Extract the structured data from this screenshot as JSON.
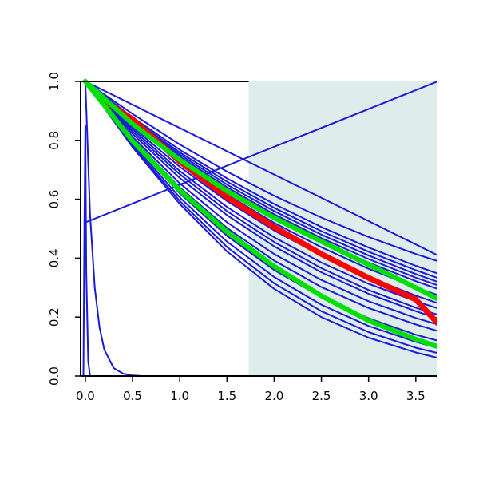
{
  "chart_data": {
    "type": "line",
    "title": "",
    "xlabel": "",
    "ylabel": "",
    "xlim": [
      -0.05,
      3.73
    ],
    "ylim": [
      0.0,
      1.0
    ],
    "x_ticks": [
      0.0,
      0.5,
      1.0,
      1.5,
      2.0,
      2.5,
      3.0,
      3.5
    ],
    "x_tick_labels": [
      "0.0",
      "0.5",
      "1.0",
      "1.5",
      "2.0",
      "2.5",
      "3.0",
      "3.5"
    ],
    "y_ticks": [
      0.0,
      0.2,
      0.4,
      0.6,
      0.8,
      1.0
    ],
    "y_tick_labels": [
      "0.0",
      "0.2",
      "0.4",
      "0.6",
      "0.8",
      "1.0"
    ],
    "grid": false,
    "legend": "none",
    "shaded_region": {
      "x_start": 1.73,
      "x_end": 3.73,
      "color": "#deeceb"
    },
    "colors": {
      "blue": "#1a1adc",
      "red": "#ff0000",
      "green": "#00e000",
      "axis": "#000000"
    },
    "series": [
      {
        "color": "blue",
        "width": 2,
        "x": [
          0,
          1.0,
          2.0,
          3.0,
          3.73
        ],
        "y": [
          1.0,
          0.842,
          0.684,
          0.526,
          0.41
        ]
      },
      {
        "color": "blue",
        "width": 2,
        "x": [
          -0.01,
          3.73
        ],
        "y": [
          0.52,
          1.0
        ]
      },
      {
        "color": "blue",
        "width": 2,
        "x": [
          0,
          0.05,
          0.1,
          0.15,
          0.2,
          0.3,
          0.4,
          0.5,
          0.6,
          0.8,
          1.0,
          3.73
        ],
        "y": [
          1.0,
          0.55,
          0.3,
          0.165,
          0.09,
          0.027,
          0.008,
          0.002,
          0.0,
          0.0,
          0.0,
          0.0
        ]
      },
      {
        "color": "blue",
        "width": 2,
        "x": [
          -0.02,
          -0.01,
          0.0,
          0.01,
          0.03,
          0.05,
          3.73
        ],
        "y": [
          0.0,
          0.5,
          0.85,
          0.35,
          0.05,
          0.0,
          0.0
        ]
      },
      {
        "color": "blue",
        "width": 2,
        "x": [
          0,
          0.5,
          1.0,
          1.5,
          2.0,
          2.5,
          3.0,
          3.5,
          3.73
        ],
        "y": [
          1.0,
          0.89,
          0.786,
          0.694,
          0.612,
          0.538,
          0.472,
          0.414,
          0.39
        ]
      },
      {
        "color": "blue",
        "width": 2,
        "x": [
          0,
          0.5,
          1.0,
          1.5,
          2.0,
          2.5,
          3.0,
          3.5,
          3.73
        ],
        "y": [
          1.0,
          0.878,
          0.768,
          0.671,
          0.584,
          0.506,
          0.436,
          0.374,
          0.348
        ]
      },
      {
        "color": "blue",
        "width": 2,
        "x": [
          0,
          0.5,
          1.0,
          1.5,
          2.0,
          2.5,
          3.0,
          3.5,
          3.73
        ],
        "y": [
          1.0,
          0.873,
          0.759,
          0.66,
          0.571,
          0.492,
          0.422,
          0.359,
          0.333
        ]
      },
      {
        "color": "blue",
        "width": 2,
        "x": [
          0,
          0.5,
          1.0,
          1.5,
          2.0,
          2.5,
          3.0,
          3.5,
          3.73
        ],
        "y": [
          1.0,
          0.868,
          0.752,
          0.65,
          0.56,
          0.48,
          0.409,
          0.346,
          0.32
        ]
      },
      {
        "color": "blue",
        "width": 2,
        "x": [
          0,
          0.5,
          1.0,
          1.5,
          2.0,
          2.5,
          3.0,
          3.5,
          3.73
        ],
        "y": [
          1.0,
          0.864,
          0.745,
          0.641,
          0.549,
          0.468,
          0.397,
          0.334,
          0.308
        ]
      },
      {
        "color": "blue",
        "width": 2,
        "x": [
          0,
          0.5,
          1.0,
          1.5,
          2.0,
          2.5,
          3.0,
          3.5,
          3.73
        ],
        "y": [
          1.0,
          0.86,
          0.738,
          0.632,
          0.539,
          0.457,
          0.385,
          0.322,
          0.296
        ]
      },
      {
        "color": "blue",
        "width": 2,
        "x": [
          0,
          0.5,
          1.0,
          1.5,
          2.0,
          2.5,
          3.0,
          3.5,
          3.73
        ],
        "y": [
          1.0,
          0.853,
          0.726,
          0.616,
          0.52,
          0.437,
          0.364,
          0.301,
          0.275
        ]
      },
      {
        "color": "blue",
        "width": 2,
        "x": [
          0,
          0.5,
          1.0,
          1.5,
          2.0,
          2.5,
          3.0,
          3.5,
          3.73
        ],
        "y": [
          1.0,
          0.845,
          0.71,
          0.594,
          0.494,
          0.409,
          0.336,
          0.273,
          0.248
        ]
      },
      {
        "color": "blue",
        "width": 2,
        "x": [
          0,
          0.5,
          1.0,
          1.5,
          2.0,
          2.5,
          3.0,
          3.5,
          3.73
        ],
        "y": [
          1.0,
          0.838,
          0.696,
          0.574,
          0.471,
          0.385,
          0.313,
          0.254,
          0.23
        ]
      },
      {
        "color": "blue",
        "width": 2,
        "x": [
          0,
          0.5,
          1.0,
          1.5,
          2.0,
          2.5,
          3.0,
          3.5,
          3.73
        ],
        "y": [
          1.0,
          0.83,
          0.685,
          0.56,
          0.455,
          0.366,
          0.292,
          0.232,
          0.208
        ]
      },
      {
        "color": "blue",
        "width": 2,
        "x": [
          0,
          0.5,
          1.0,
          1.5,
          2.0,
          2.5,
          3.0,
          3.5,
          3.73
        ],
        "y": [
          1.0,
          0.822,
          0.672,
          0.546,
          0.44,
          0.352,
          0.279,
          0.22,
          0.196
        ]
      },
      {
        "color": "blue",
        "width": 2,
        "x": [
          0,
          0.5,
          1.0,
          1.5,
          2.0,
          2.5,
          3.0,
          3.5,
          3.73
        ],
        "y": [
          1.0,
          0.812,
          0.654,
          0.522,
          0.414,
          0.326,
          0.254,
          0.197,
          0.175
        ]
      },
      {
        "color": "blue",
        "width": 2,
        "x": [
          0,
          0.5,
          1.0,
          1.5,
          2.0,
          2.5,
          3.0,
          3.5,
          3.73
        ],
        "y": [
          1.0,
          0.805,
          0.64,
          0.503,
          0.392,
          0.302,
          0.231,
          0.175,
          0.153
        ]
      },
      {
        "color": "blue",
        "width": 2,
        "x": [
          0,
          0.5,
          1.0,
          1.5,
          2.0,
          2.5,
          3.0,
          3.5,
          3.73
        ],
        "y": [
          1.0,
          0.795,
          0.62,
          0.476,
          0.36,
          0.268,
          0.196,
          0.14,
          0.12
        ]
      },
      {
        "color": "blue",
        "width": 2,
        "x": [
          0,
          0.5,
          1.0,
          1.5,
          2.0,
          2.5,
          3.0,
          3.5,
          3.73
        ],
        "y": [
          1.0,
          0.788,
          0.606,
          0.456,
          0.336,
          0.242,
          0.17,
          0.116,
          0.096
        ]
      },
      {
        "color": "blue",
        "width": 2,
        "x": [
          0,
          0.5,
          1.0,
          1.5,
          2.0,
          2.5,
          3.0,
          3.5,
          3.73
        ],
        "y": [
          1.0,
          0.782,
          0.594,
          0.438,
          0.315,
          0.22,
          0.149,
          0.096,
          0.078
        ]
      },
      {
        "color": "blue",
        "width": 2,
        "x": [
          0,
          0.5,
          1.0,
          1.5,
          2.0,
          2.5,
          3.0,
          3.5,
          3.73
        ],
        "y": [
          1.0,
          0.777,
          0.584,
          0.423,
          0.296,
          0.2,
          0.13,
          0.08,
          0.062
        ]
      },
      {
        "color": "red",
        "width": 7,
        "x": [
          0.22,
          0.5,
          1.0,
          1.5,
          2.0,
          2.5,
          3.0,
          3.5,
          3.73
        ],
        "y": [
          0.93,
          0.872,
          0.728,
          0.607,
          0.506,
          0.414,
          0.333,
          0.26,
          0.18
        ]
      },
      {
        "color": "green",
        "width": 6,
        "x": [
          0,
          0.5,
          1.0,
          1.5,
          2.0,
          2.5,
          3.0,
          3.5,
          3.73
        ],
        "y": [
          1.0,
          0.856,
          0.734,
          0.628,
          0.537,
          0.457,
          0.378,
          0.3,
          0.262
        ]
      },
      {
        "color": "green",
        "width": 6,
        "x": [
          0,
          0.5,
          1.0,
          1.5,
          2.0,
          2.5,
          3.0,
          3.5,
          3.73
        ],
        "y": [
          1.0,
          0.798,
          0.63,
          0.49,
          0.372,
          0.272,
          0.188,
          0.125,
          0.1
        ]
      }
    ]
  }
}
